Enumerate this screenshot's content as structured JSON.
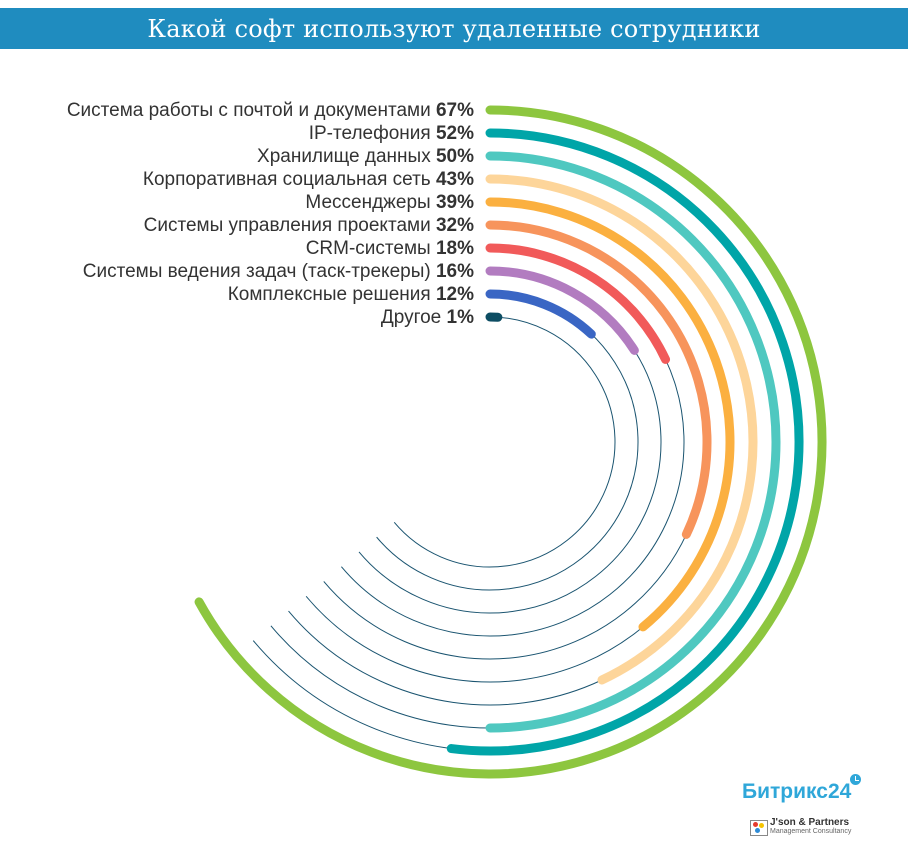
{
  "header": {
    "title": "Какой софт используют удаленные сотрудники"
  },
  "chart_data": {
    "type": "radial-bar",
    "title": "Какой софт используют удаленные сотрудники",
    "unit": "%",
    "value_max": 100,
    "grid": false,
    "legend": "none",
    "categories": [
      "Система работы с почтой и документами",
      "IP-телефония",
      "Хранилище данных",
      "Корпоративная социальная сеть",
      "Мессенджеры",
      "Системы управления проектами",
      "CRM-системы",
      "Системы ведения задач (таск-трекеры)",
      "Комплексные решения",
      "Другое"
    ],
    "values": [
      67,
      52,
      50,
      43,
      39,
      32,
      18,
      16,
      12,
      1
    ],
    "value_labels": [
      "67%",
      "52%",
      "50%",
      "43%",
      "39%",
      "32%",
      "18%",
      "16%",
      "12%",
      "1%"
    ],
    "colors": [
      "#8dc63f",
      "#00a5a8",
      "#4fc8c0",
      "#fdd59a",
      "#fbb040",
      "#f7945c",
      "#f15a5a",
      "#b27cc0",
      "#3a66c4",
      "#0d4d63"
    ],
    "guide_color": "#1a5470"
  },
  "logos": {
    "bitrix_text": "Битрикс24",
    "partner_name": "J'son & Partners",
    "partner_sub": "Management Consultancy"
  }
}
